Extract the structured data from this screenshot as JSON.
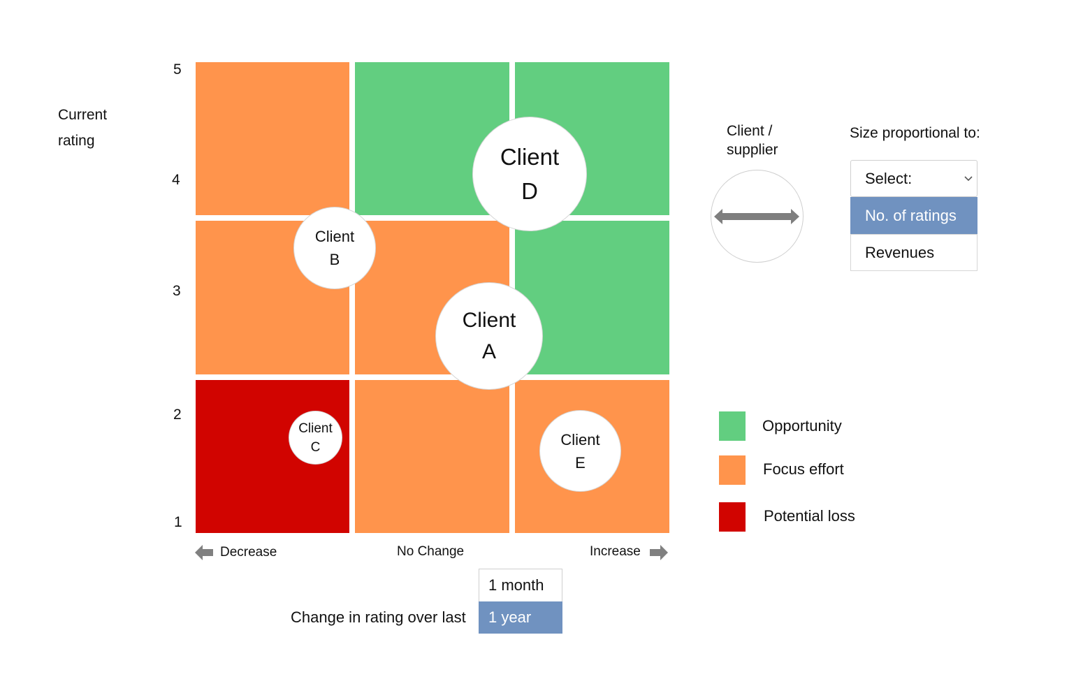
{
  "y_axis": {
    "label_line1": "Current",
    "label_line2": "rating",
    "ticks": [
      "5",
      "4",
      "3",
      "2",
      "1"
    ]
  },
  "x_axis": {
    "decrease": "Decrease",
    "no_change": "No Change",
    "increase": "Increase"
  },
  "colors": {
    "opportunity": "#62CE80",
    "focus": "#FF944C",
    "loss": "#D10400",
    "selected": "#7092C0"
  },
  "grid": [
    [
      "focus",
      "opportunity",
      "opportunity"
    ],
    [
      "focus",
      "focus",
      "opportunity"
    ],
    [
      "loss",
      "focus",
      "focus"
    ]
  ],
  "clients": [
    {
      "line1": "Client",
      "line2": "D"
    },
    {
      "line1": "Client",
      "line2": "B"
    },
    {
      "line1": "Client",
      "line2": "A"
    },
    {
      "line1": "Client",
      "line2": "C"
    },
    {
      "line1": "Client",
      "line2": "E"
    }
  ],
  "period": {
    "label": "Change in rating over last",
    "options": [
      "1 month",
      "1 year"
    ],
    "selected": "1 year"
  },
  "key": {
    "line1": "Client /",
    "line2": "supplier"
  },
  "size": {
    "title": "Size proportional to:",
    "placeholder": "Select:",
    "options": [
      "No. of ratings",
      "Revenues"
    ],
    "selected": "No. of ratings"
  },
  "legend": [
    {
      "label": "Opportunity",
      "color": "#62CE80"
    },
    {
      "label": "Focus effort",
      "color": "#FF944C"
    },
    {
      "label": "Potential loss",
      "color": "#D10400"
    }
  ]
}
